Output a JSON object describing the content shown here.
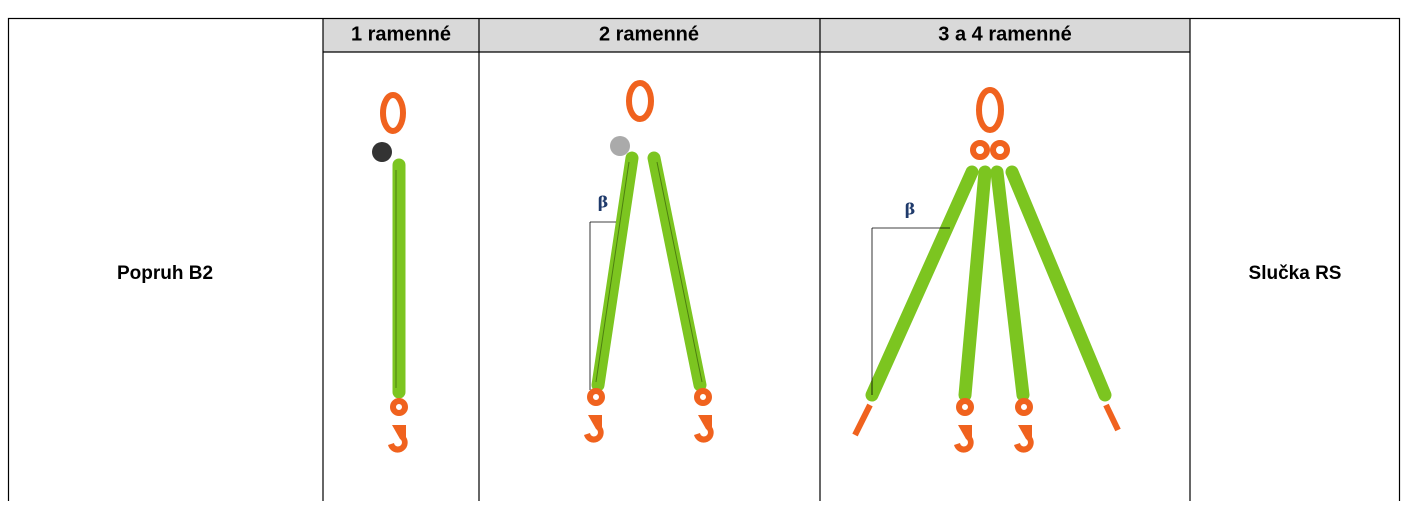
{
  "table": {
    "left_label": "Popruh B2",
    "columns": [
      "1 ramenné",
      "2 ramenné",
      "3 a 4 ramenné"
    ],
    "right_label": "Slučka RS",
    "angle_labels": [
      "β",
      "β"
    ]
  }
}
